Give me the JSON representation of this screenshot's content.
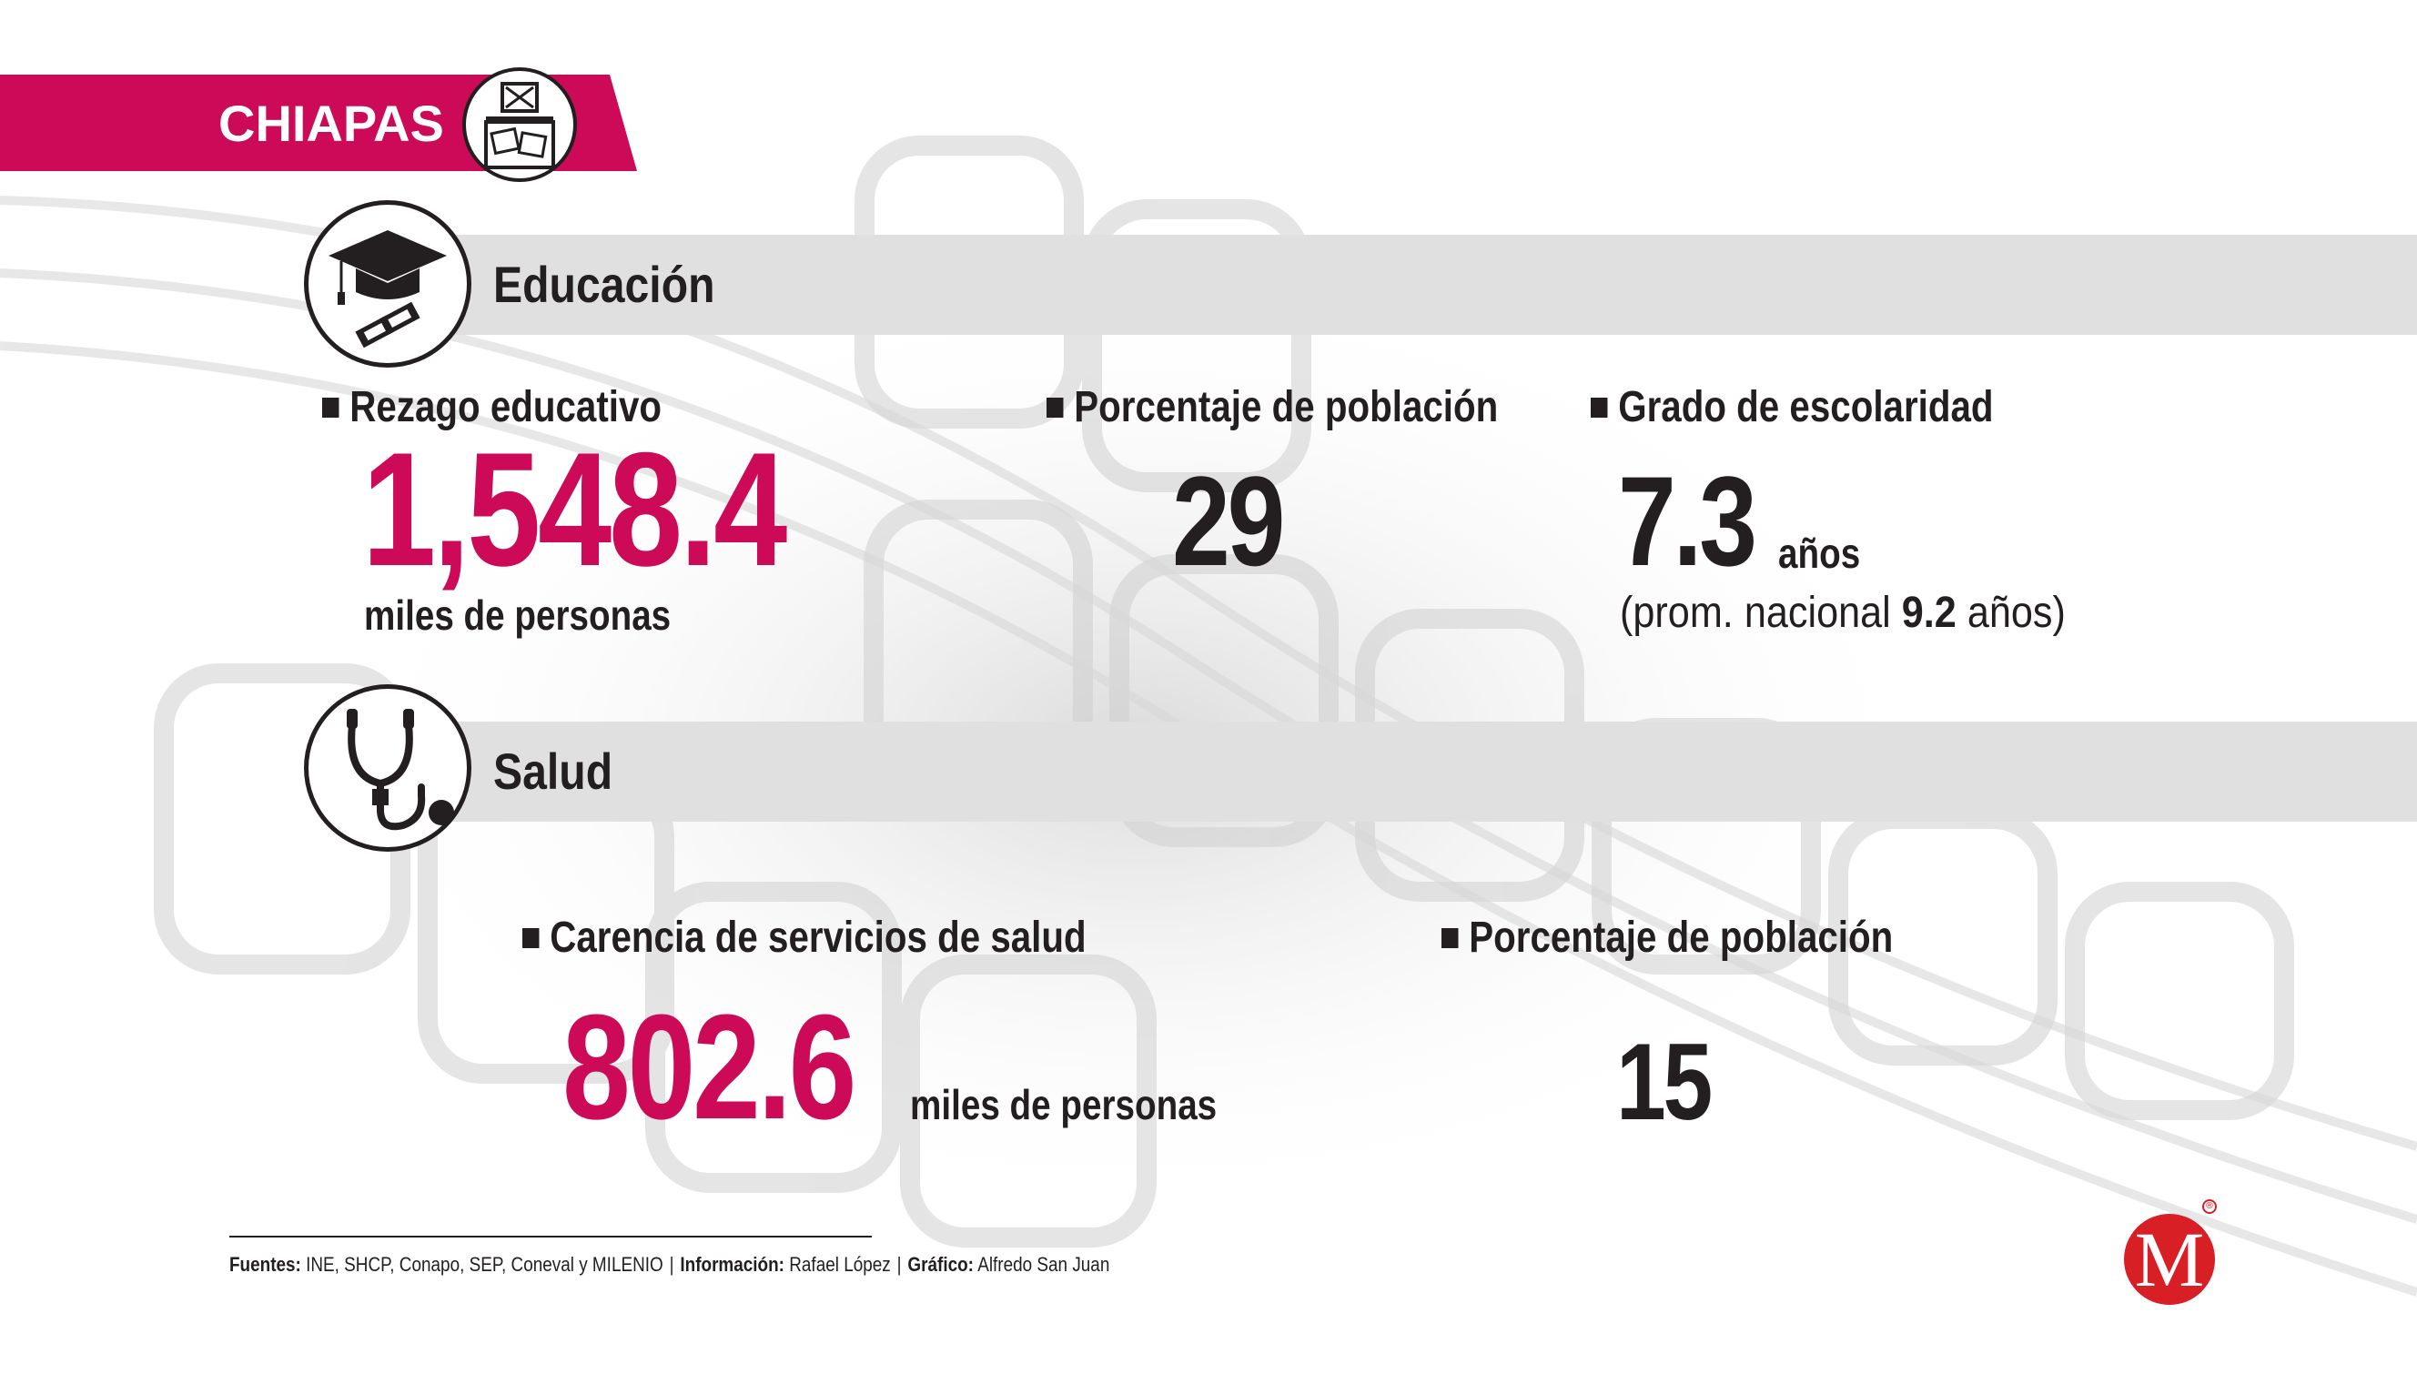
{
  "header": {
    "state": "CHIAPAS",
    "icon": "ballot-box-icon"
  },
  "colors": {
    "accent": "#cc0a58",
    "text": "#231f20",
    "bar": "#e0e0e1",
    "logo": "#d81f26"
  },
  "educacion": {
    "title": "Educación",
    "icon": "graduation-cap-icon",
    "rezago_label": "Rezago educativo",
    "rezago_value": "1,548.4",
    "rezago_unit": "miles de personas",
    "porcentaje_label": "Porcentaje de población",
    "porcentaje_value": "29",
    "grado_label": "Grado de escolaridad",
    "grado_value": "7.3",
    "grado_unit": "años",
    "prom_prefix": "(prom. nacional",
    "prom_value": "9.2",
    "prom_suffix": "años)"
  },
  "salud": {
    "title": "Salud",
    "icon": "stethoscope-icon",
    "carencia_label": "Carencia de servicios de salud",
    "carencia_value": "802.6",
    "carencia_unit": "miles de personas",
    "porcentaje_label": "Porcentaje de población",
    "porcentaje_value": "15"
  },
  "footer": {
    "fuentes_label": "Fuentes:",
    "fuentes_text": "INE, SHCP, Conapo, SEP, Coneval y MILENIO",
    "info_label": "Información:",
    "info_text": "Rafael López",
    "grafico_label": "Gráfico:",
    "grafico_text": "Alfredo San Juan",
    "separator": "|"
  },
  "logo": {
    "letter": "M",
    "reg": "®"
  }
}
